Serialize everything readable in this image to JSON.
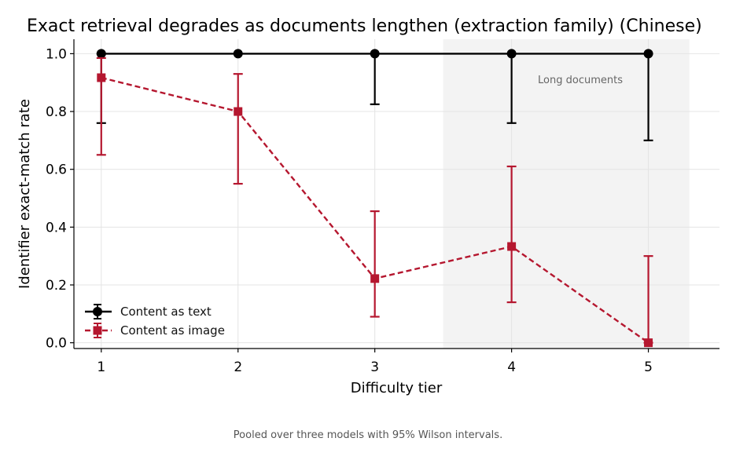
{
  "caption": "Pooled over three models with 95% Wilson intervals.",
  "colors": {
    "text_series": "#000000",
    "image_series": "#b5172f",
    "shade": "#f3f3f3",
    "grid": "#e4e4e4",
    "annotation": "#666666"
  },
  "chart_data": {
    "type": "line",
    "title": "Exact retrieval degrades as documents lengthen (extraction family) (Chinese)",
    "xlabel": "Difficulty tier",
    "ylabel": "Identifier exact-match rate",
    "x": [
      1,
      2,
      3,
      4,
      5
    ],
    "xlim": [
      0.8,
      5.52
    ],
    "ylim": [
      -0.02,
      1.05
    ],
    "yticks": [
      0.0,
      0.2,
      0.4,
      0.6,
      0.8,
      1.0
    ],
    "ytick_labels": [
      "0.0",
      "0.2",
      "0.4",
      "0.6",
      "0.8",
      "1.0"
    ],
    "xticks": [
      1,
      2,
      3,
      4,
      5
    ],
    "xtick_labels": [
      "1",
      "2",
      "3",
      "4",
      "5"
    ],
    "grid": true,
    "legend_position": "lower-left",
    "series": [
      {
        "name": "Content as text",
        "color": "#000000",
        "line_style": "solid",
        "marker": "circle",
        "values": [
          1.0,
          1.0,
          1.0,
          1.0,
          1.0
        ],
        "ci_low": [
          0.76,
          1.0,
          0.825,
          0.76,
          0.7
        ],
        "ci_high": [
          1.0,
          1.0,
          1.0,
          1.0,
          1.0
        ]
      },
      {
        "name": "Content as image",
        "color": "#b5172f",
        "line_style": "dashed",
        "marker": "square",
        "values": [
          0.917,
          0.8,
          0.222,
          0.333,
          0.0
        ],
        "ci_low": [
          0.65,
          0.55,
          0.09,
          0.14,
          0.0
        ],
        "ci_high": [
          0.985,
          0.93,
          0.455,
          0.61,
          0.3
        ]
      }
    ],
    "shaded_region": {
      "x_start": 3.5,
      "x_end": 5.3,
      "label": "Long documents",
      "color": "#f3f3f3"
    }
  }
}
